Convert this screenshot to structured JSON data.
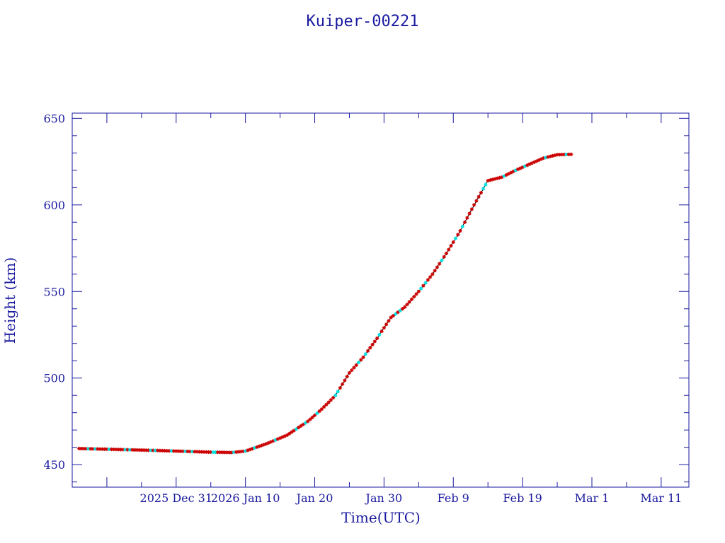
{
  "chart_data": {
    "type": "scatter",
    "title": "Kuiper-00221",
    "xlabel": "Time(UTC)",
    "ylabel": "Height (km)",
    "xlim": [
      "2025-12-16",
      "2026-03-15"
    ],
    "ylim": [
      437,
      653
    ],
    "x_ticks": [
      "2025-12-21",
      "2025-12-31",
      "2026-01-10",
      "2026-01-20",
      "2026-01-30",
      "2026-02-09",
      "2026-02-19",
      "2026-03-01",
      "2026-03-11"
    ],
    "x_tick_labels": [
      "",
      "2025 Dec 31",
      "2026 Jan 10",
      "Jan 20",
      "Jan 30",
      "Feb  9",
      "Feb 19",
      "Mar  1",
      "Mar 11"
    ],
    "y_ticks": [
      450,
      500,
      550,
      600,
      650
    ],
    "y_tick_labels": [
      "450",
      "500",
      "550",
      "600",
      "650"
    ],
    "colors": {
      "axis": "#1a1aa0",
      "line": "#000000",
      "primary_marker": "#cc0000",
      "secondary_marker": "#00e0e0"
    },
    "series": [
      {
        "points": [
          [
            "2025-12-17",
            459.3
          ],
          [
            "2025-12-20",
            459.0
          ],
          [
            "2025-12-24",
            458.6
          ],
          [
            "2025-12-28",
            458.2
          ],
          [
            "2026-01-01",
            457.7
          ],
          [
            "2026-01-05",
            457.2
          ],
          [
            "2026-01-08",
            457.0
          ],
          [
            "2026-01-10",
            457.8
          ],
          [
            "2026-01-13",
            462.0
          ],
          [
            "2026-01-16",
            467.0
          ],
          [
            "2026-01-19",
            475.0
          ],
          [
            "2026-01-21",
            482.0
          ],
          [
            "2026-01-23",
            490.0
          ],
          [
            "2026-01-25",
            503.0
          ],
          [
            "2026-01-27",
            512.0
          ],
          [
            "2026-01-29",
            523.0
          ],
          [
            "2026-01-31",
            535.0
          ],
          [
            "2026-02-02",
            541.0
          ],
          [
            "2026-02-04",
            550.0
          ],
          [
            "2026-02-06",
            560.0
          ],
          [
            "2026-02-08",
            572.0
          ],
          [
            "2026-02-10",
            585.0
          ],
          [
            "2026-02-12",
            600.0
          ],
          [
            "2026-02-14",
            614.0
          ],
          [
            "2026-02-16",
            616.0
          ],
          [
            "2026-02-18",
            620.0
          ],
          [
            "2026-02-20",
            623.5
          ],
          [
            "2026-02-22",
            627.0
          ],
          [
            "2026-02-24",
            629.0
          ],
          [
            "2026-02-26",
            629.2
          ]
        ]
      }
    ]
  }
}
